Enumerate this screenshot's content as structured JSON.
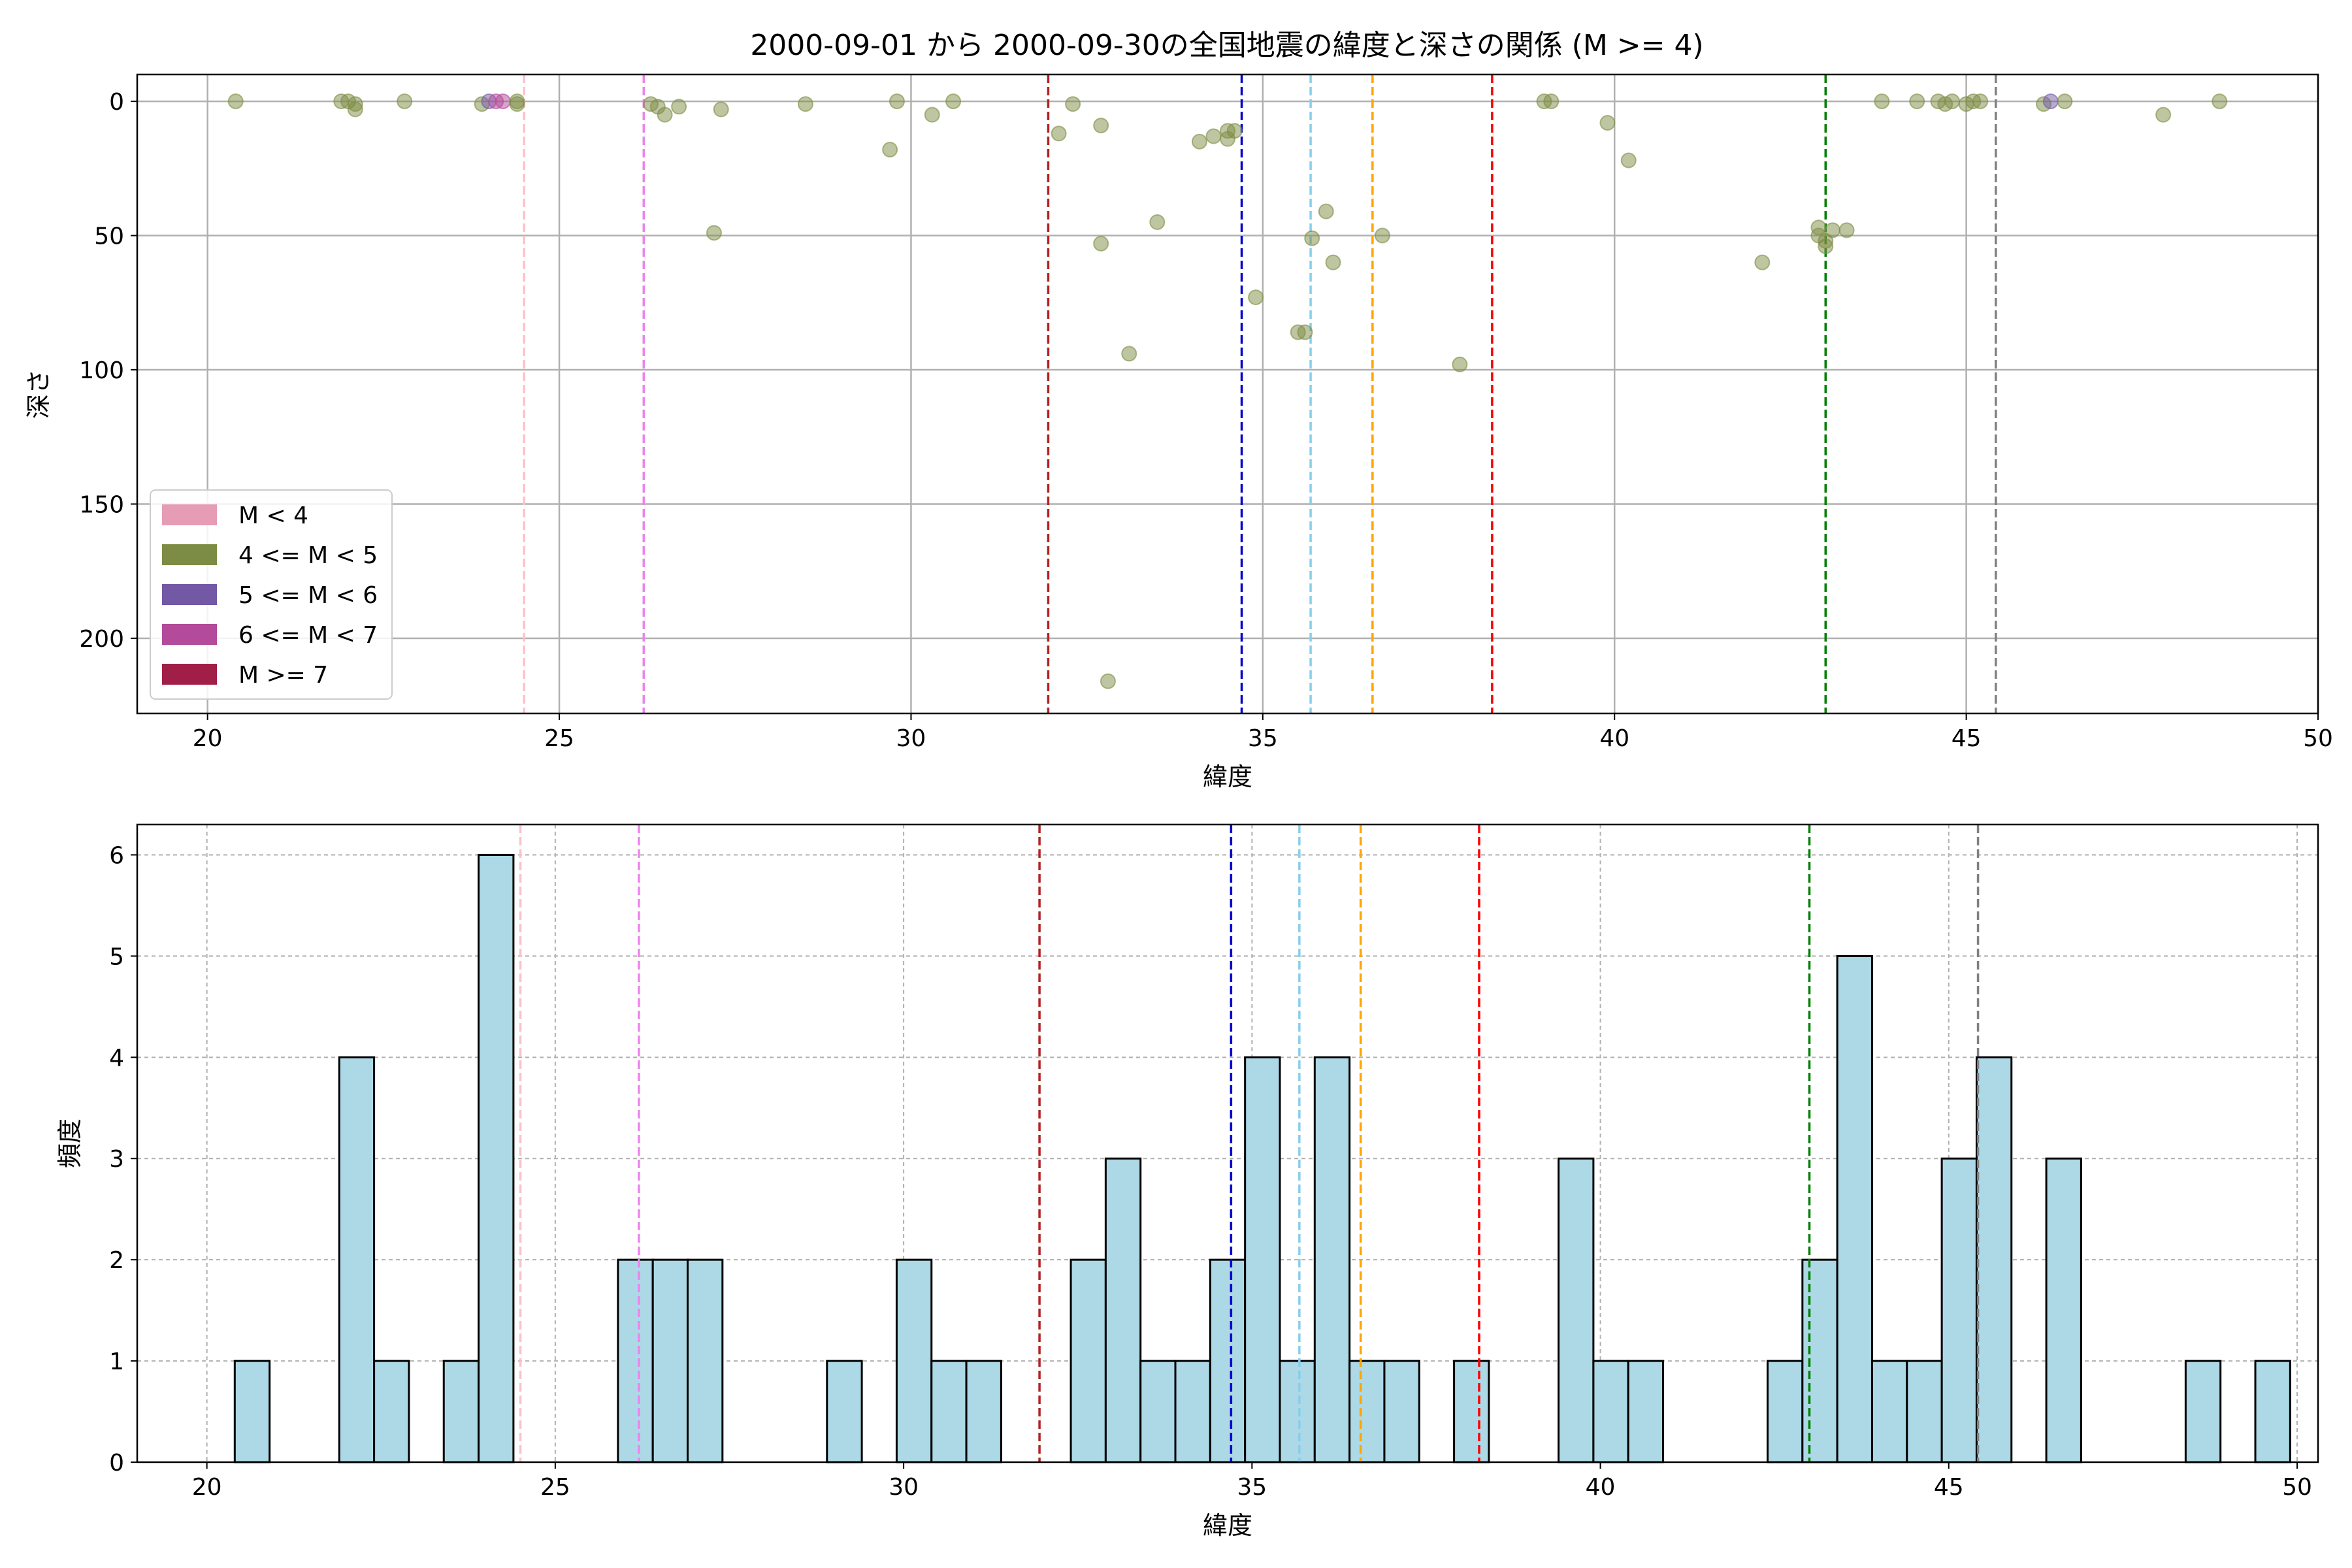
{
  "chart_data": [
    {
      "type": "scatter",
      "title": "2000-09-01 から 2000-09-30の全国地震の緯度と深さの関係 (M >= 4)",
      "xlabel": "緯度",
      "ylabel": "深さ",
      "xlim": [
        19,
        50
      ],
      "ylim": [
        228,
        -10
      ],
      "y_inverted": true,
      "xticks": [
        20,
        25,
        30,
        35,
        40,
        45,
        50
      ],
      "yticks": [
        0,
        50,
        100,
        150,
        200
      ],
      "grid": true,
      "legend_position": "lower-left",
      "legend": [
        {
          "label": "M < 4",
          "color": "#e69cb5"
        },
        {
          "label": "4 <= M < 5",
          "color": "#7d8c44"
        },
        {
          "label": "5 <= M < 6",
          "color": "#7358a6"
        },
        {
          "label": "6 <= M < 7",
          "color": "#b34a9a"
        },
        {
          "label": "M >= 7",
          "color": "#a11f47"
        }
      ],
      "points": [
        {
          "x": 20.4,
          "y": 0,
          "c": 1
        },
        {
          "x": 21.9,
          "y": 0,
          "c": 1
        },
        {
          "x": 22.0,
          "y": 0,
          "c": 1
        },
        {
          "x": 22.1,
          "y": 1,
          "c": 1
        },
        {
          "x": 22.1,
          "y": 3,
          "c": 1
        },
        {
          "x": 22.8,
          "y": 0,
          "c": 1
        },
        {
          "x": 23.9,
          "y": 1,
          "c": 1
        },
        {
          "x": 24.0,
          "y": 0,
          "c": 2
        },
        {
          "x": 24.1,
          "y": 0,
          "c": 3
        },
        {
          "x": 24.2,
          "y": 0,
          "c": 3
        },
        {
          "x": 24.4,
          "y": 1,
          "c": 1
        },
        {
          "x": 24.4,
          "y": 0,
          "c": 1
        },
        {
          "x": 26.3,
          "y": 1,
          "c": 1
        },
        {
          "x": 26.4,
          "y": 2,
          "c": 1
        },
        {
          "x": 26.5,
          "y": 5,
          "c": 1
        },
        {
          "x": 26.7,
          "y": 2,
          "c": 1
        },
        {
          "x": 27.2,
          "y": 49,
          "c": 1
        },
        {
          "x": 27.3,
          "y": 3,
          "c": 1
        },
        {
          "x": 28.5,
          "y": 1,
          "c": 1
        },
        {
          "x": 29.7,
          "y": 18,
          "c": 1
        },
        {
          "x": 29.8,
          "y": 0,
          "c": 1
        },
        {
          "x": 30.3,
          "y": 5,
          "c": 1
        },
        {
          "x": 30.6,
          "y": 0,
          "c": 1
        },
        {
          "x": 32.1,
          "y": 12,
          "c": 1
        },
        {
          "x": 32.3,
          "y": 1,
          "c": 1
        },
        {
          "x": 32.7,
          "y": 9,
          "c": 1
        },
        {
          "x": 32.7,
          "y": 53,
          "c": 1
        },
        {
          "x": 32.8,
          "y": 216,
          "c": 1
        },
        {
          "x": 33.1,
          "y": 94,
          "c": 1
        },
        {
          "x": 33.5,
          "y": 45,
          "c": 1
        },
        {
          "x": 34.1,
          "y": 15,
          "c": 1
        },
        {
          "x": 34.3,
          "y": 13,
          "c": 1
        },
        {
          "x": 34.5,
          "y": 14,
          "c": 1
        },
        {
          "x": 34.5,
          "y": 11,
          "c": 1
        },
        {
          "x": 34.6,
          "y": 11,
          "c": 1
        },
        {
          "x": 34.9,
          "y": 73,
          "c": 1
        },
        {
          "x": 35.5,
          "y": 86,
          "c": 1
        },
        {
          "x": 35.6,
          "y": 86,
          "c": 1
        },
        {
          "x": 35.7,
          "y": 51,
          "c": 1
        },
        {
          "x": 35.9,
          "y": 41,
          "c": 1
        },
        {
          "x": 36.0,
          "y": 60,
          "c": 1
        },
        {
          "x": 36.7,
          "y": 50,
          "c": 1
        },
        {
          "x": 37.8,
          "y": 98,
          "c": 1
        },
        {
          "x": 39.0,
          "y": 0,
          "c": 1
        },
        {
          "x": 39.1,
          "y": 0,
          "c": 1
        },
        {
          "x": 39.9,
          "y": 8,
          "c": 1
        },
        {
          "x": 40.2,
          "y": 22,
          "c": 1
        },
        {
          "x": 42.1,
          "y": 60,
          "c": 1
        },
        {
          "x": 42.9,
          "y": 47,
          "c": 1
        },
        {
          "x": 42.9,
          "y": 50,
          "c": 1
        },
        {
          "x": 43.0,
          "y": 52,
          "c": 1
        },
        {
          "x": 43.0,
          "y": 54,
          "c": 1
        },
        {
          "x": 43.1,
          "y": 48,
          "c": 1
        },
        {
          "x": 43.3,
          "y": 48,
          "c": 1
        },
        {
          "x": 43.8,
          "y": 0,
          "c": 1
        },
        {
          "x": 44.3,
          "y": 0,
          "c": 1
        },
        {
          "x": 44.6,
          "y": 0,
          "c": 1
        },
        {
          "x": 44.7,
          "y": 1,
          "c": 1
        },
        {
          "x": 44.8,
          "y": 0,
          "c": 1
        },
        {
          "x": 45.0,
          "y": 1,
          "c": 1
        },
        {
          "x": 45.1,
          "y": 0,
          "c": 1
        },
        {
          "x": 45.2,
          "y": 0,
          "c": 1
        },
        {
          "x": 46.1,
          "y": 1,
          "c": 1
        },
        {
          "x": 46.2,
          "y": 0,
          "c": 2
        },
        {
          "x": 46.4,
          "y": 0,
          "c": 1
        },
        {
          "x": 47.8,
          "y": 5,
          "c": 1
        },
        {
          "x": 48.6,
          "y": 0,
          "c": 1
        }
      ],
      "vlines": [
        {
          "x": 24.5,
          "color": "#ffc0cb"
        },
        {
          "x": 26.2,
          "color": "#ee82ee"
        },
        {
          "x": 31.95,
          "color": "#b22222"
        },
        {
          "x": 34.7,
          "color": "#0000cd"
        },
        {
          "x": 35.68,
          "color": "#87ceeb"
        },
        {
          "x": 36.56,
          "color": "#ffa500"
        },
        {
          "x": 38.26,
          "color": "#ff0000"
        },
        {
          "x": 43.0,
          "color": "#008000"
        },
        {
          "x": 45.42,
          "color": "#808080"
        }
      ]
    },
    {
      "type": "bar",
      "xlabel": "緯度",
      "ylabel": "頻度",
      "xlim": [
        19,
        50.3
      ],
      "ylim": [
        0,
        6.3
      ],
      "xticks": [
        20,
        25,
        30,
        35,
        40,
        45,
        50
      ],
      "yticks": [
        0,
        1,
        2,
        3,
        4,
        5,
        6
      ],
      "grid": true,
      "bar_color": "#add8e6",
      "bin_start": 20.4,
      "bin_width": 0.5,
      "counts": [
        1,
        0,
        0,
        4,
        1,
        0,
        1,
        6,
        0,
        0,
        0,
        2,
        2,
        2,
        0,
        0,
        0,
        1,
        0,
        2,
        1,
        1,
        0,
        0,
        2,
        3,
        1,
        1,
        2,
        4,
        1,
        4,
        1,
        1,
        0,
        1,
        0,
        0,
        3,
        1,
        1,
        0,
        0,
        0,
        1,
        2,
        5,
        1,
        1,
        3,
        4,
        0,
        3,
        0,
        0,
        0,
        1,
        0,
        1
      ],
      "vlines": [
        {
          "x": 24.5,
          "color": "#ffc0cb"
        },
        {
          "x": 26.2,
          "color": "#ee82ee"
        },
        {
          "x": 31.95,
          "color": "#b22222"
        },
        {
          "x": 34.7,
          "color": "#0000cd"
        },
        {
          "x": 35.68,
          "color": "#87ceeb"
        },
        {
          "x": 36.56,
          "color": "#ffa500"
        },
        {
          "x": 38.26,
          "color": "#ff0000"
        },
        {
          "x": 43.0,
          "color": "#008000"
        },
        {
          "x": 45.42,
          "color": "#808080"
        }
      ]
    }
  ]
}
